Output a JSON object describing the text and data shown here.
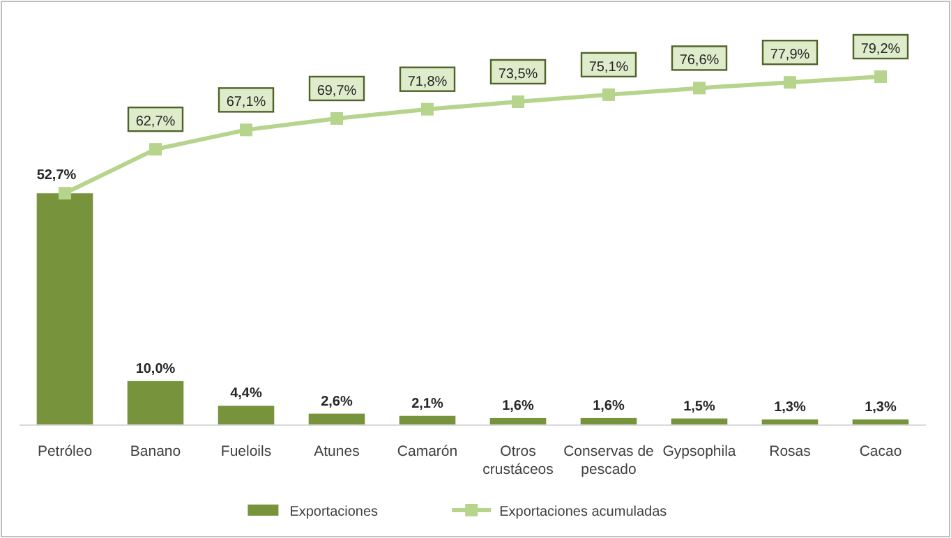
{
  "chart_data": {
    "type": "bar",
    "categories": [
      "Petróleo",
      "Banano",
      "Fueloils",
      "Atunes",
      "Camarón",
      "Otros crustáceos",
      "Conservas de pescado",
      "Gypsophila",
      "Rosas",
      "Cacao"
    ],
    "series": [
      {
        "name": "Exportaciones",
        "color": "#77933c",
        "values": [
          52.7,
          10.0,
          4.4,
          2.6,
          2.1,
          1.6,
          1.6,
          1.5,
          1.3,
          1.3
        ],
        "value_labels": [
          "52,7%",
          "10,0%",
          "4,4%",
          "2,6%",
          "2,1%",
          "1,6%",
          "1,6%",
          "1,5%",
          "1,3%",
          "1,3%"
        ]
      },
      {
        "name": "Exportaciones acumuladas",
        "type": "line",
        "color": "#b7d48c",
        "values": [
          52.7,
          62.7,
          67.1,
          69.7,
          71.8,
          73.5,
          75.1,
          76.6,
          77.9,
          79.2
        ],
        "value_labels": [
          null,
          "62,7%",
          "67,1%",
          "69,7%",
          "71,8%",
          "73,5%",
          "75,1%",
          "76,6%",
          "77,9%",
          "79,2%"
        ]
      }
    ],
    "marker": "square",
    "legend": "bottom"
  }
}
